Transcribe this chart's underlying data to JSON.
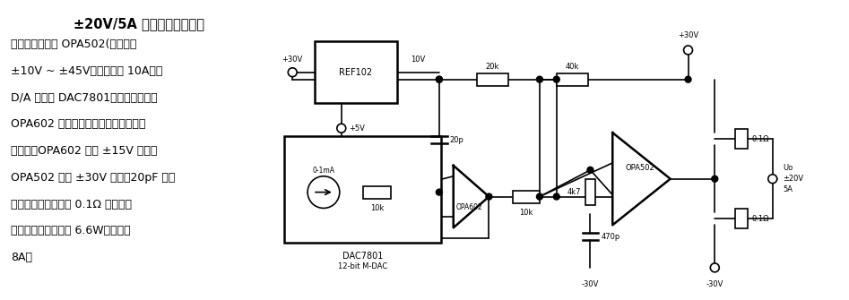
{
  "bg_color": "#ffffff",
  "fig_width": 9.47,
  "fig_height": 3.35,
  "dpi": 100,
  "title": "±20V/5A 数控直流稳压电源",
  "text_lines": [
    "利用大功率运放 OPA502(电源电压",
    "±10V ~ ±45V、输出电流 10A）与",
    "D/A 转换器 DAC7801、高速精密运放",
    "OPA602 等，可以组成精密数控直流稳",
    "压电源。OPA602 采用 ±15V 供电，",
    "OPA502 采用 ±30V 供电。20pF 电容",
    "防止高频自激，两个 0.1Ω 电阻是限",
    "流电阻，功耗应大于 6.6W，限流值",
    "8A。"
  ],
  "lw": 1.2,
  "lw2": 1.8,
  "fs_title": 10.5,
  "fs_body": 9.0,
  "fs_label": 7.0,
  "fs_small": 6.0,
  "color": "#000000"
}
